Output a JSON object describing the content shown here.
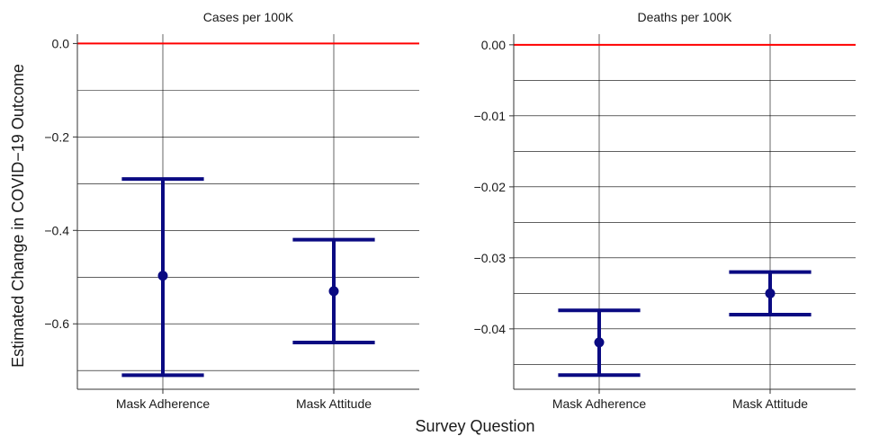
{
  "chart_data": [
    {
      "type": "errorbar",
      "title": "Cases per 100K",
      "categories": [
        "Mask Adherence",
        "Mask Attitude"
      ],
      "values": [
        -0.497,
        -0.53
      ],
      "lower": [
        -0.71,
        -0.64
      ],
      "upper": [
        -0.29,
        -0.42
      ],
      "ylim": [
        -0.74,
        0.02
      ],
      "yticks": [
        -0.6,
        -0.4,
        -0.2,
        0.0
      ],
      "ytick_labels": [
        "−0.6",
        "−0.4",
        "−0.2",
        "0.0"
      ],
      "minor_y": [
        -0.7,
        -0.5,
        -0.3,
        -0.1
      ],
      "reference_line": 0.0
    },
    {
      "type": "errorbar",
      "title": "Deaths per 100K",
      "categories": [
        "Mask Adherence",
        "Mask Attitude"
      ],
      "values": [
        -0.0419,
        -0.035
      ],
      "lower": [
        -0.0465,
        -0.038
      ],
      "upper": [
        -0.0374,
        -0.032
      ],
      "ylim": [
        -0.0485,
        0.0015
      ],
      "yticks": [
        -0.04,
        -0.03,
        -0.02,
        -0.01,
        0.0
      ],
      "ytick_labels": [
        "−0.04",
        "−0.03",
        "−0.02",
        "−0.01",
        "0.00"
      ],
      "minor_y": [
        -0.045,
        -0.035,
        -0.025,
        -0.015,
        -0.005
      ],
      "reference_line": 0.0
    }
  ],
  "xlabel": "Survey Question",
  "ylabel": "Estimated Change in COVID−19 Outcome",
  "colors": {
    "estimate": "#0a0a82",
    "reference_line": "#ff0000",
    "grid": "#000000"
  },
  "grid": true
}
